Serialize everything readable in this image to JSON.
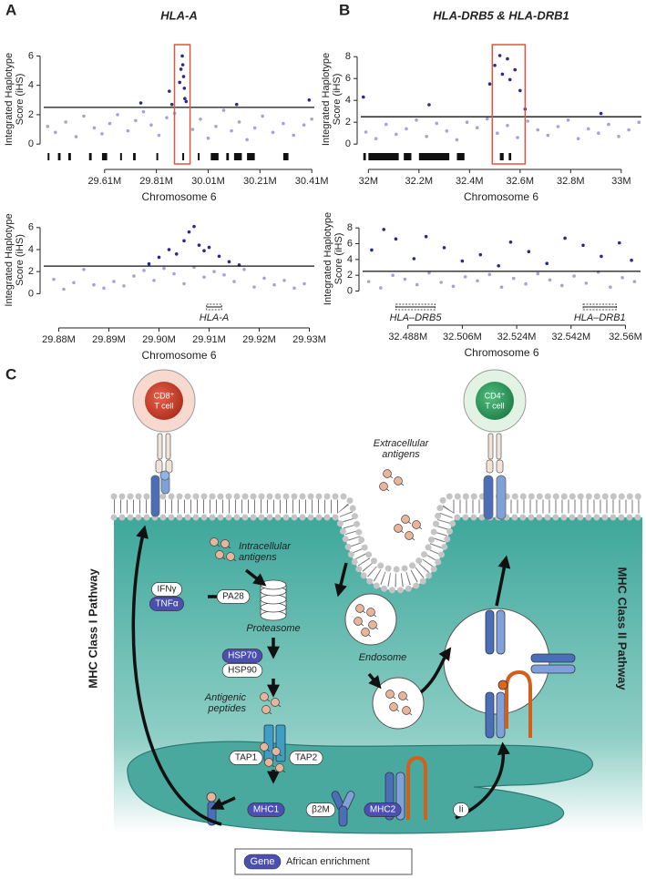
{
  "panel_labels": [
    "A",
    "B",
    "C"
  ],
  "chart_data": [
    {
      "type": "scatter",
      "title": "HLA-A",
      "y_label": [
        "Integrated Haplotype",
        "Score (iHS)"
      ],
      "x_label": "Chromosome 6",
      "xlim": [
        29.375,
        30.42
      ],
      "ylim": [
        -0.3,
        6.4
      ],
      "xticks": [
        {
          "value": 29.61,
          "label": "29.61M"
        },
        {
          "value": 29.81,
          "label": "29.81M"
        },
        {
          "value": 30.01,
          "label": "30.01M"
        },
        {
          "value": 30.21,
          "label": "30.21M"
        },
        {
          "value": 30.41,
          "label": "30.41M"
        }
      ],
      "yticks": [
        0,
        2,
        4,
        6
      ],
      "threshold": 2.5,
      "highlight": [
        29.88,
        29.94
      ],
      "series": [
        {
          "color": "#a3a3dc",
          "x": [
            29.39,
            29.42,
            29.46,
            29.5,
            29.53,
            29.57,
            29.6,
            29.63,
            29.66,
            29.7,
            29.73,
            29.76,
            29.79,
            29.82,
            29.85,
            29.88,
            29.95,
            29.98,
            30.01,
            30.04,
            30.07,
            30.1,
            30.13,
            30.16,
            30.19,
            30.22,
            30.26,
            30.3,
            30.34,
            30.38,
            30.41
          ],
          "values": [
            1.2,
            0.8,
            1.5,
            0.5,
            1.9,
            1.1,
            0.7,
            1.4,
            2.0,
            0.9,
            1.6,
            2.2,
            1.3,
            0.6,
            1.8,
            2.1,
            1.0,
            1.7,
            0.4,
            1.2,
            2.3,
            0.9,
            1.5,
            0.3,
            1.1,
            1.9,
            0.8,
            1.4,
            0.6,
            1.3,
            1.7
          ]
        },
        {
          "color": "#2b2a8c",
          "x": [
            29.75,
            29.86,
            29.87,
            29.9,
            29.905,
            29.91,
            29.912,
            29.915,
            29.918,
            29.92,
            29.925,
            30.12,
            30.4
          ],
          "values": [
            2.8,
            3.6,
            2.7,
            4.2,
            5.1,
            6.0,
            5.4,
            4.6,
            3.8,
            3.1,
            2.9,
            2.7,
            3.0
          ]
        }
      ],
      "genes": [
        [
          29.39,
          29.395
        ],
        [
          29.43,
          29.44
        ],
        [
          29.47,
          29.48
        ],
        [
          29.55,
          29.56
        ],
        [
          29.6,
          29.62
        ],
        [
          29.67,
          29.675
        ],
        [
          29.72,
          29.73
        ],
        [
          29.81,
          29.815
        ],
        [
          29.91,
          29.913
        ],
        [
          29.97,
          29.975
        ],
        [
          30.02,
          30.05
        ],
        [
          30.08,
          30.09
        ],
        [
          30.11,
          30.14
        ],
        [
          30.16,
          30.19
        ],
        [
          30.3,
          30.32
        ]
      ]
    },
    {
      "type": "scatter",
      "y_label": [
        "Integrated Haplotype",
        "Score (iHS)"
      ],
      "x_label": "Chromosome 6",
      "xlim": [
        29.877,
        29.931
      ],
      "ylim": [
        -0.3,
        6.4
      ],
      "xticks": [
        {
          "value": 29.88,
          "label": "29.88M"
        },
        {
          "value": 29.89,
          "label": "29.89M"
        },
        {
          "value": 29.9,
          "label": "29.90M"
        },
        {
          "value": 29.91,
          "label": "29.91M"
        },
        {
          "value": 29.92,
          "label": "29.92M"
        },
        {
          "value": 29.93,
          "label": "29.93M"
        }
      ],
      "yticks": [
        0,
        2,
        4,
        6
      ],
      "threshold": 2.5,
      "series": [
        {
          "color": "#a3a3dc",
          "x": [
            29.879,
            29.881,
            29.883,
            29.885,
            29.887,
            29.889,
            29.891,
            29.893,
            29.895,
            29.897,
            29.899,
            29.901,
            29.903,
            29.905,
            29.907,
            29.909,
            29.911,
            29.913,
            29.915,
            29.917,
            29.919,
            29.921,
            29.923,
            29.925,
            29.927,
            29.929
          ],
          "values": [
            1.3,
            0.4,
            1.0,
            2.2,
            0.8,
            0.5,
            1.1,
            0.7,
            1.6,
            2.1,
            1.2,
            2.3,
            1.8,
            0.9,
            2.4,
            1.5,
            2.0,
            1.7,
            1.1,
            2.2,
            0.6,
            1.4,
            0.8,
            1.2,
            0.5,
            0.9
          ]
        },
        {
          "color": "#2b2a8c",
          "x": [
            29.898,
            29.9,
            29.902,
            29.9035,
            29.905,
            29.906,
            29.907,
            29.908,
            29.909,
            29.91,
            29.912,
            29.914,
            29.916
          ],
          "values": [
            2.7,
            3.3,
            4.0,
            3.6,
            4.8,
            5.6,
            6.1,
            4.4,
            3.9,
            4.2,
            3.4,
            2.9,
            2.6
          ]
        }
      ],
      "labeled_genes": [
        {
          "label": "HLA-A",
          "start": 29.9095,
          "end": 29.9125
        }
      ]
    },
    {
      "type": "scatter",
      "title": "HLA-DRB5 & HLA-DRB1",
      "y_label": [
        "Integrated Haplotype",
        "Score (iHS)"
      ],
      "x_label": "Chromosome 6",
      "xlim": [
        31.97,
        33.08
      ],
      "ylim": [
        -0.4,
        8.6
      ],
      "xticks": [
        {
          "value": 32,
          "label": "32M"
        },
        {
          "value": 32.2,
          "label": "32.2M"
        },
        {
          "value": 32.4,
          "label": "32.4M"
        },
        {
          "value": 32.6,
          "label": "32.6M"
        },
        {
          "value": 32.8,
          "label": "32.8M"
        },
        {
          "value": 33,
          "label": "33M"
        }
      ],
      "yticks": [
        0,
        2,
        4,
        6,
        8
      ],
      "threshold": 2.5,
      "highlight": [
        32.49,
        32.62
      ],
      "series": [
        {
          "color": "#a3a3dc",
          "x": [
            31.99,
            32.03,
            32.07,
            32.11,
            32.15,
            32.19,
            32.23,
            32.27,
            32.31,
            32.35,
            32.39,
            32.43,
            32.47,
            32.51,
            32.55,
            32.59,
            32.63,
            32.67,
            32.71,
            32.75,
            32.79,
            32.83,
            32.87,
            32.91,
            32.95,
            32.99,
            33.03,
            33.07
          ],
          "values": [
            1.1,
            0.5,
            1.8,
            0.9,
            1.4,
            2.2,
            0.7,
            1.9,
            1.2,
            0.4,
            2.0,
            1.5,
            2.3,
            1.0,
            1.7,
            0.6,
            2.1,
            1.3,
            0.8,
            1.6,
            2.2,
            0.5,
            1.4,
            1.0,
            1.8,
            0.7,
            1.3,
            2.0
          ]
        },
        {
          "color": "#2b2a8c",
          "x": [
            31.98,
            32.24,
            32.48,
            32.5,
            32.52,
            32.53,
            32.55,
            32.56,
            32.58,
            32.6,
            32.62,
            32.92
          ],
          "values": [
            4.3,
            3.6,
            5.5,
            7.2,
            8.1,
            6.4,
            7.8,
            5.9,
            6.8,
            4.9,
            3.2,
            2.8
          ]
        }
      ],
      "genes": [
        [
          31.98,
          31.99
        ],
        [
          32.0,
          32.12
        ],
        [
          32.14,
          32.17
        ],
        [
          32.2,
          32.32
        ],
        [
          32.35,
          32.38
        ],
        [
          32.52,
          32.535
        ],
        [
          32.555,
          32.565
        ]
      ]
    },
    {
      "type": "scatter",
      "y_label": [
        "Integrated Haplotype",
        "Score (iHS)"
      ],
      "x_label": "Chromosome 6",
      "xlim": [
        32.473,
        32.565
      ],
      "ylim": [
        -0.4,
        8.6
      ],
      "xticks": [
        {
          "value": 32.488,
          "label": "32.488M"
        },
        {
          "value": 32.506,
          "label": "32.506M"
        },
        {
          "value": 32.524,
          "label": "32.524M"
        },
        {
          "value": 32.542,
          "label": "32.542M"
        },
        {
          "value": 32.56,
          "label": "32.56M"
        }
      ],
      "yticks": [
        0,
        2,
        4,
        6,
        8
      ],
      "threshold": 2.5,
      "series": [
        {
          "color": "#a3a3dc",
          "x": [
            32.475,
            32.479,
            32.483,
            32.487,
            32.491,
            32.495,
            32.499,
            32.503,
            32.507,
            32.511,
            32.515,
            32.519,
            32.523,
            32.527,
            32.531,
            32.535,
            32.539,
            32.543,
            32.547,
            32.551,
            32.555,
            32.559,
            32.563
          ],
          "values": [
            1.2,
            0.4,
            2.0,
            1.5,
            0.8,
            2.3,
            1.1,
            0.6,
            1.8,
            1.3,
            2.1,
            0.5,
            1.6,
            0.9,
            2.2,
            1.4,
            0.7,
            1.9,
            1.0,
            2.4,
            0.5,
            1.7,
            1.2
          ]
        },
        {
          "color": "#2b2a8c",
          "x": [
            32.476,
            32.48,
            32.484,
            32.49,
            32.494,
            32.5,
            32.506,
            32.512,
            32.518,
            32.522,
            32.528,
            32.534,
            32.54,
            32.546,
            32.552,
            32.558,
            32.562
          ],
          "values": [
            5.2,
            7.8,
            6.6,
            4.1,
            6.9,
            5.5,
            3.8,
            4.6,
            3.2,
            6.2,
            5.0,
            3.5,
            6.7,
            5.8,
            4.4,
            6.1,
            3.9
          ]
        }
      ],
      "labeled_genes": [
        {
          "label": "HLA–DRB5",
          "start": 32.484,
          "end": 32.497
        },
        {
          "label": "HLA–DRB1",
          "start": 32.546,
          "end": 32.557
        }
      ]
    }
  ],
  "diagram": {
    "cells": [
      {
        "marker": "CD8⁺",
        "label": "T cell"
      },
      {
        "marker": "CD4⁺",
        "label": "T cell"
      }
    ],
    "captions": {
      "extracellular": [
        "Extracellular",
        "antigens"
      ],
      "intracellular": [
        "Intracellular",
        "antigens"
      ],
      "proteasome": "Proteasome",
      "peptides": [
        "Antigenic",
        "peptides"
      ],
      "endosome": "Endosome"
    },
    "genes": [
      {
        "label": "IFNγ",
        "enriched": false
      },
      {
        "label": "TNFα",
        "enriched": true
      },
      {
        "label": "PA28",
        "enriched": false
      },
      {
        "label": "HSP70",
        "enriched": true
      },
      {
        "label": "HSP90",
        "enriched": false
      },
      {
        "label": "TAP1",
        "enriched": false
      },
      {
        "label": "TAP2",
        "enriched": false
      },
      {
        "label": "MHC1",
        "enriched": true
      },
      {
        "label": "β2M",
        "enriched": false
      },
      {
        "label": "MHC2",
        "enriched": true
      },
      {
        "label": "Ii",
        "enriched": false
      }
    ],
    "pathways": [
      "MHC Class I Pathway",
      "MHC Class II Pathway"
    ],
    "legend": {
      "gene": "Gene",
      "label": "African enrichment"
    }
  }
}
